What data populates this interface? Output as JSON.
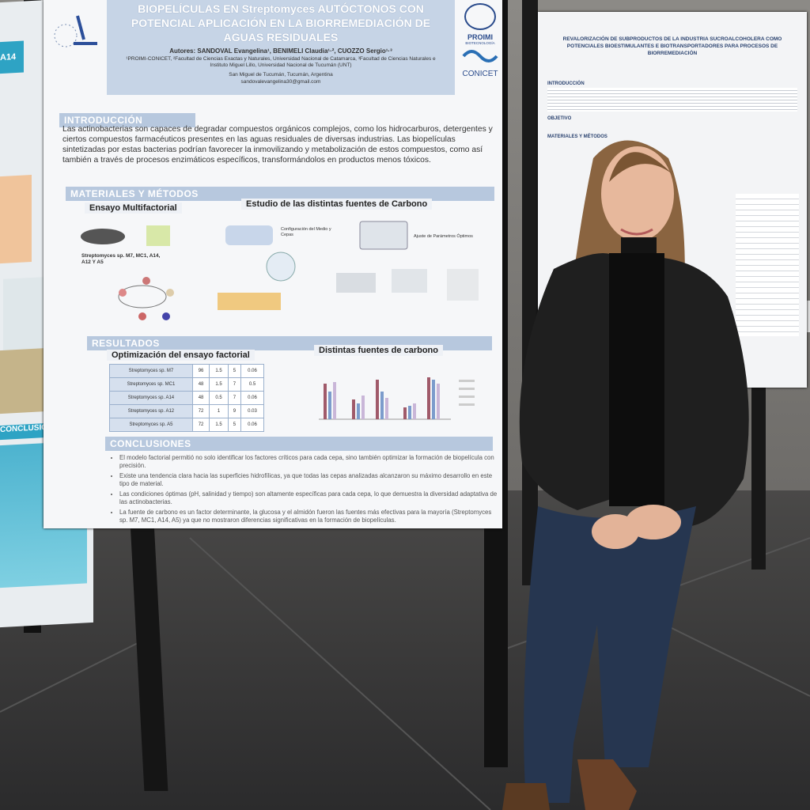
{
  "main_poster": {
    "title": "BIOPELÍCULAS EN Streptomyces AUTÓCTONOS CON POTENCIAL APLICACIÓN EN LA BIORREMEDIACIÓN DE AGUAS RESIDUALES",
    "authors": "Autores: SANDOVAL Evangelina¹, BENIMELI Claudia¹·², CUOZZO Sergio¹·³",
    "affiliation": "¹PROIMI-CONICET, ²Facultad de Ciencias Exactas y Naturales, Universidad Nacional de Catamarca, ³Facultad de Ciencias Naturales e Instituto Miguel Lillo, Universidad Nacional de Tucumán (UNT)",
    "location": "San Miguel de Tucumán, Tucumán, Argentina",
    "email": "sandovalevangelina30@gmail.com",
    "logos": [
      "PROIMI",
      "BIOTECNOLOGÍA",
      "CONICET"
    ],
    "introduction": {
      "heading": "INTRODUCCIÓN",
      "text": "Las actinobacterias son capaces de degradar compuestos orgánicos complejos, como los hidrocarburos, detergentes y ciertos compuestos farmacéuticos presentes en las aguas residuales de diversas industrias. Las biopelículas sintetizadas por estas bacterias podrían favorecer la inmovilizando y metabolización de estos compuestos, como así también a través de procesos enzimáticos específicos, transformándolos en productos menos tóxicos."
    },
    "methods": {
      "heading": "MATERIALES Y MÉTODOS",
      "left_title": "Ensayo Multifactorial",
      "right_title": "Estudio de las distintas fuentes de Carbono",
      "strains": "Streptomyces sp. M7, MC1, A14, A12 Y A5",
      "steps": [
        "Configuración del Medio y Cepas",
        "Ajuste de Parámetros Óptimos"
      ]
    },
    "results": {
      "heading": "RESULTADOS",
      "table_title": "Optimización del ensayo factorial",
      "chart_title": "Distintas fuentes de carbono",
      "table_rows": [
        [
          "Streptomyces sp. M7",
          "96",
          "1.5",
          "5",
          "0.06"
        ],
        [
          "Streptomyces sp. MC1",
          "48",
          "1.5",
          "7",
          "0.5"
        ],
        [
          "Streptomyces sp. A14",
          "48",
          "0.5",
          "7",
          "0.06"
        ],
        [
          "Streptomyces sp. A12",
          "72",
          "1",
          "9",
          "0.03"
        ],
        [
          "Streptomyces sp. A5",
          "72",
          "1.5",
          "5",
          "0.06"
        ]
      ]
    },
    "conclusions": {
      "heading": "CONCLUSIONES",
      "items": [
        "El modelo factorial permitió no solo identificar los factores críticos para cada cepa, sino también optimizar la formación de biopelícula con precisión.",
        "Existe una tendencia clara hacia las superficies hidrofílicas, ya que todas las cepas analizadas alcanzaron su máximo desarrollo en este tipo de material.",
        "Las condiciones óptimas (pH, salinidad y tiempo) son altamente específicas para cada cepa, lo que demuestra la diversidad adaptativa de las actinobacterias.",
        "La fuente de carbono es un factor determinante, la glucosa y el almidón fueron las fuentes más efectivas para la mayoría (Streptomyces sp. M7, MC1, A14, A5) ya que no mostraron diferencias significativas en la formación de biopelículas."
      ]
    }
  },
  "right_poster": {
    "title": "REVALORIZACIÓN DE SUBPRODUCTOS DE LA INDUSTRIA SUCROALCOHOLERA COMO POTENCIALES BIOESTIMULANTES E BIOTRANSPORTADORES PARA PROCESOS DE BIORREMEDIACIÓN",
    "sections": [
      "INTRODUCCIÓN",
      "OBJETIVO",
      "MATERIALES Y MÉTODOS"
    ]
  },
  "left_poster": {
    "tag": "A14",
    "section": "CONCLUSIÓN"
  }
}
